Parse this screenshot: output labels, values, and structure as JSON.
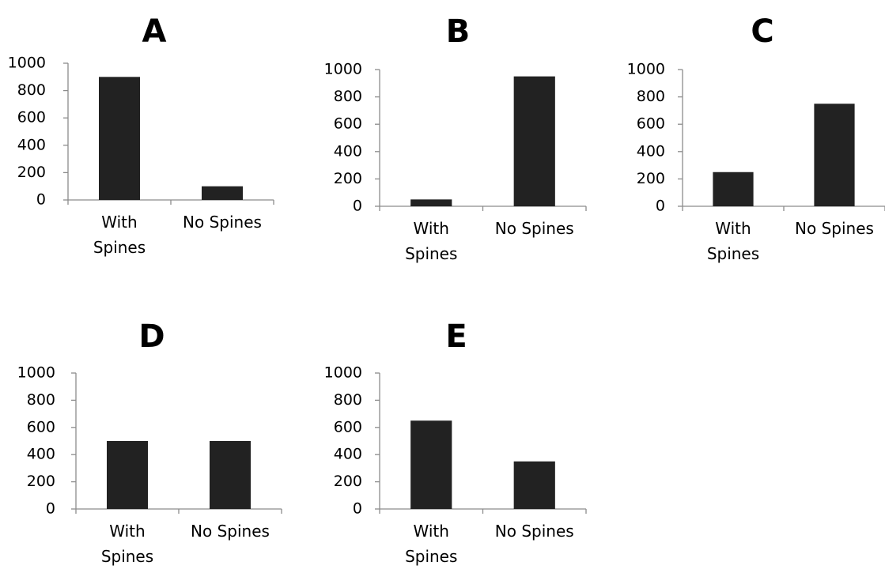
{
  "chart_data": [
    {
      "type": "bar",
      "title": "A",
      "categories": [
        "With Spines",
        "No Spines"
      ],
      "values": [
        900,
        100
      ],
      "ylim": [
        0,
        1000
      ],
      "yticks": [
        0,
        200,
        400,
        600,
        800,
        1000
      ],
      "grid": false,
      "legend": "none",
      "bar_color": "#222222"
    },
    {
      "type": "bar",
      "title": "B",
      "categories": [
        "With Spines",
        "No Spines"
      ],
      "values": [
        50,
        950
      ],
      "ylim": [
        0,
        1000
      ],
      "yticks": [
        0,
        200,
        400,
        600,
        800,
        1000
      ],
      "grid": false,
      "legend": "none",
      "bar_color": "#222222"
    },
    {
      "type": "bar",
      "title": "C",
      "categories": [
        "With Spines",
        "No Spines"
      ],
      "values": [
        250,
        750
      ],
      "ylim": [
        0,
        1000
      ],
      "yticks": [
        0,
        200,
        400,
        600,
        800,
        1000
      ],
      "grid": false,
      "legend": "none",
      "bar_color": "#222222"
    },
    {
      "type": "bar",
      "title": "D",
      "categories": [
        "With Spines",
        "No Spines"
      ],
      "values": [
        500,
        500
      ],
      "ylim": [
        0,
        1000
      ],
      "yticks": [
        0,
        200,
        400,
        600,
        800,
        1000
      ],
      "grid": false,
      "legend": "none",
      "bar_color": "#222222"
    },
    {
      "type": "bar",
      "title": "E",
      "categories": [
        "With Spines",
        "No Spines"
      ],
      "values": [
        650,
        350
      ],
      "ylim": [
        0,
        1000
      ],
      "yticks": [
        0,
        200,
        400,
        600,
        800,
        1000
      ],
      "grid": false,
      "legend": "none",
      "bar_color": "#222222"
    }
  ]
}
